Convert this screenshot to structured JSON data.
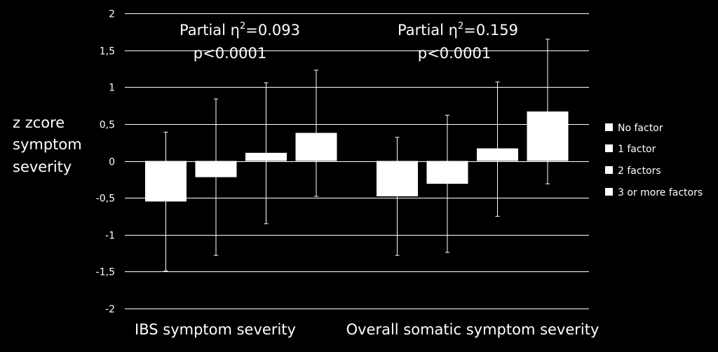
{
  "chart_data": {
    "type": "bar",
    "title": "",
    "ylabel_lines": [
      "z zcore",
      "symptom",
      "severity"
    ],
    "xlabel": "",
    "ylim": [
      -2,
      2
    ],
    "yticks": [
      {
        "value": 2,
        "label": "2"
      },
      {
        "value": 1.5,
        "label": "1,5"
      },
      {
        "value": 1,
        "label": "1"
      },
      {
        "value": 0.5,
        "label": "0,5"
      },
      {
        "value": 0,
        "label": "0"
      },
      {
        "value": -0.5,
        "label": "-0,5"
      },
      {
        "value": -1,
        "label": "-1"
      },
      {
        "value": -1.5,
        "label": "-1,5"
      },
      {
        "value": -2,
        "label": "-2"
      }
    ],
    "grid": true,
    "categories": [
      "IBS symptom severity",
      "Overall somatic symptom severity"
    ],
    "series": [
      {
        "name": "No factor",
        "values": [
          -0.55,
          -0.48
        ],
        "err_high": [
          0.39,
          0.32
        ],
        "err_low": [
          -1.49,
          -1.28
        ]
      },
      {
        "name": "1 factor",
        "values": [
          -0.22,
          -0.31
        ],
        "err_high": [
          0.84,
          0.62
        ],
        "err_low": [
          -1.28,
          -1.24
        ]
      },
      {
        "name": "2 factors",
        "values": [
          0.11,
          0.17
        ],
        "err_high": [
          1.06,
          1.07
        ],
        "err_low": [
          -0.85,
          -0.75
        ]
      },
      {
        "name": "3 or more factors",
        "values": [
          0.38,
          0.67
        ],
        "err_high": [
          1.23,
          1.65
        ],
        "err_low": [
          -0.48,
          -0.31
        ]
      }
    ],
    "annotations": [
      {
        "line1_prefix": "Partial η",
        "line1_sup": "2",
        "line1_suffix": "=0.093",
        "line2": "p<0.0001"
      },
      {
        "line1_prefix": "Partial η",
        "line1_sup": "2",
        "line1_suffix": "=0.159",
        "line2": "p<0.0001"
      }
    ],
    "legend_position": "right",
    "colors": {
      "background": "#000000",
      "bar": "#ffffff",
      "grid": "#ffffff",
      "text": "#ffffff"
    }
  }
}
